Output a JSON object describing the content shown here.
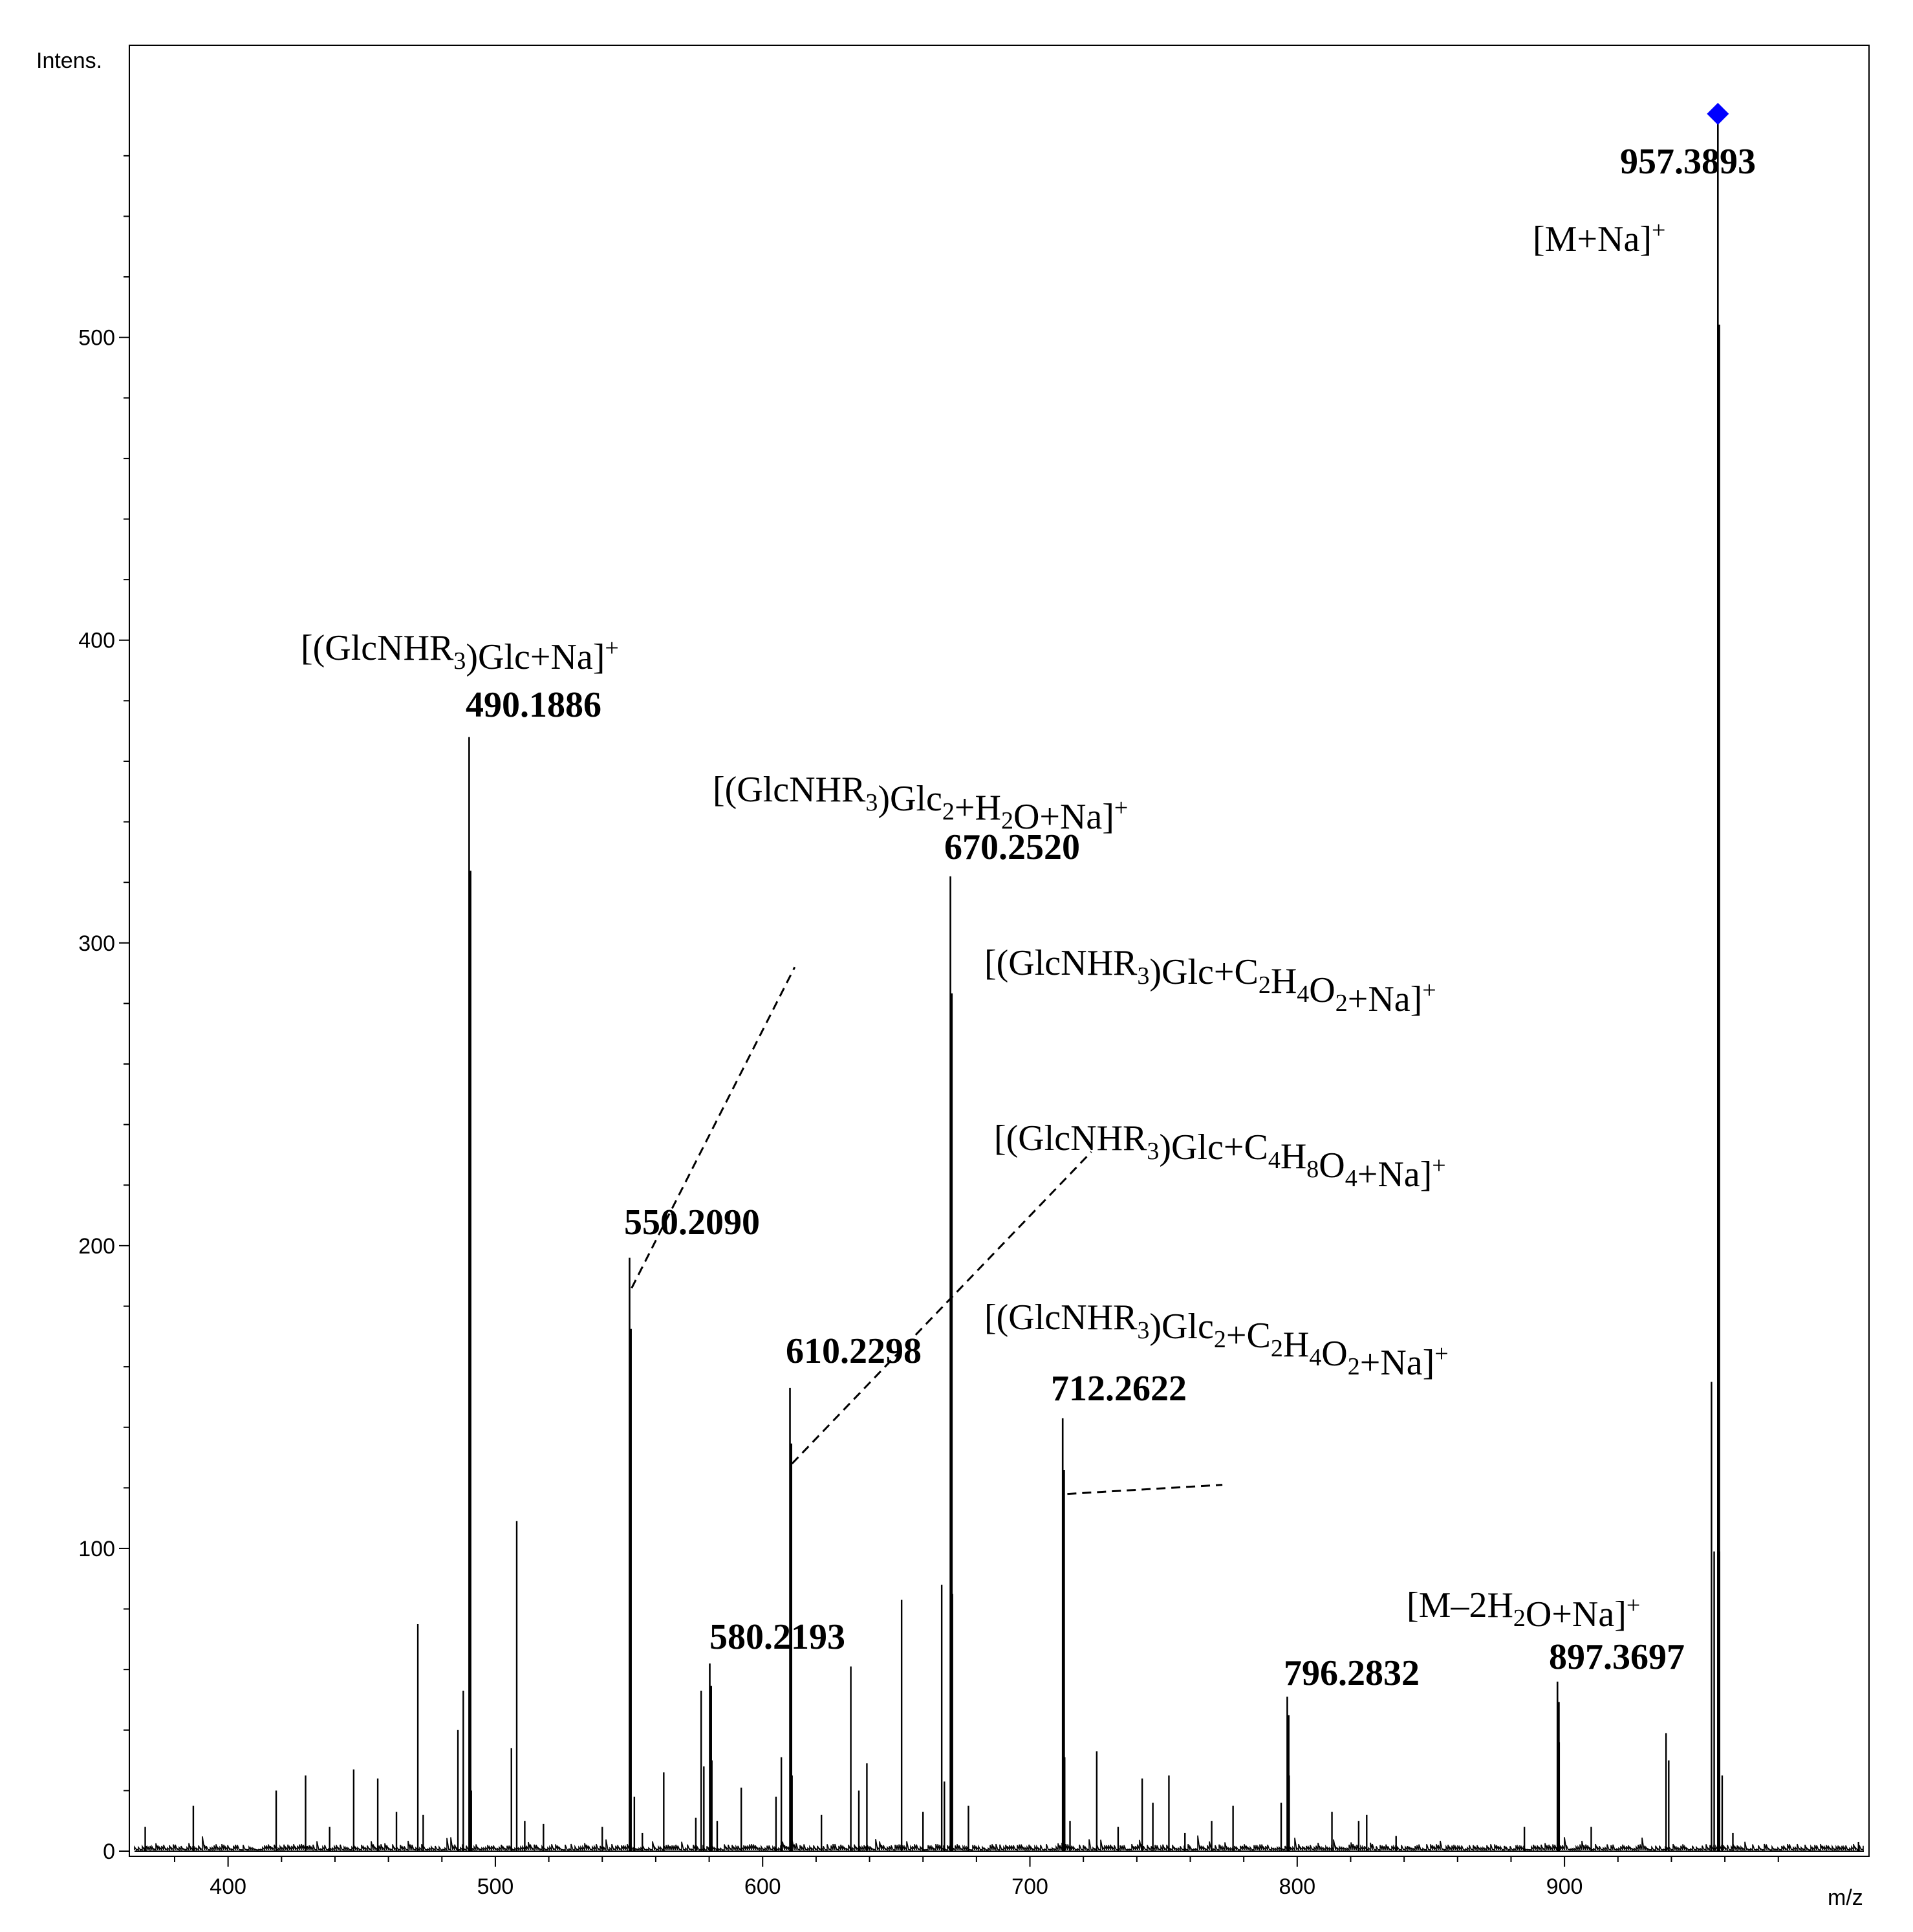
{
  "chart_data": {
    "type": "line",
    "title": "",
    "xlabel": "m/z",
    "ylabel": "Intens.",
    "xlim": [
      365,
      1012
    ],
    "ylim": [
      0,
      575
    ],
    "x_ticks": [
      400,
      500,
      600,
      700,
      800,
      900
    ],
    "y_ticks": [
      0,
      100,
      200,
      300,
      400,
      500
    ],
    "grid": false,
    "legend": "none",
    "colors": {
      "spectrum": "#000000",
      "marker": "#0000ff",
      "dash": "#000000"
    },
    "labeled_peaks": [
      {
        "mz": 490.1886,
        "intensity": 368,
        "label": "490.1886",
        "annotation": "[(GlcNHR3)Glc+Na]+"
      },
      {
        "mz": 550.209,
        "intensity": 196,
        "label": "550.2090",
        "annotation": "[(GlcNHR3)Glc+C2H4O2+Na]+"
      },
      {
        "mz": 580.2193,
        "intensity": 62,
        "label": "580.2193",
        "annotation": ""
      },
      {
        "mz": 610.2298,
        "intensity": 153,
        "label": "610.2298",
        "annotation": "[(GlcNHR3)Glc+C4H8O4+Na]+"
      },
      {
        "mz": 670.252,
        "intensity": 322,
        "label": "670.2520",
        "annotation": "[(GlcNHR3)Glc2+H2O+Na]+"
      },
      {
        "mz": 712.2622,
        "intensity": 143,
        "label": "712.2622",
        "annotation": "[(GlcNHR3)Glc2+C2H4O2+Na]+"
      },
      {
        "mz": 796.2832,
        "intensity": 51,
        "label": "796.2832",
        "annotation": ""
      },
      {
        "mz": 897.3697,
        "intensity": 56,
        "label": "897.3697",
        "annotation": "[M–2H2O+Na]+"
      },
      {
        "mz": 957.3893,
        "intensity": 573,
        "label": "957.3893",
        "annotation": "[M+Na]+"
      }
    ],
    "other_peaks": [
      [
        369,
        8
      ],
      [
        387,
        15
      ],
      [
        418,
        20
      ],
      [
        429,
        25
      ],
      [
        438,
        8
      ],
      [
        447,
        27
      ],
      [
        456,
        24
      ],
      [
        463,
        13
      ],
      [
        471,
        75
      ],
      [
        473,
        12
      ],
      [
        486,
        40
      ],
      [
        488,
        53
      ],
      [
        491,
        20
      ],
      [
        506,
        34
      ],
      [
        508,
        109
      ],
      [
        511,
        10
      ],
      [
        518,
        9
      ],
      [
        540,
        8
      ],
      [
        552,
        18
      ],
      [
        555,
        6
      ],
      [
        563,
        26
      ],
      [
        575,
        11
      ],
      [
        577,
        53
      ],
      [
        578,
        28
      ],
      [
        581,
        30
      ],
      [
        583,
        10
      ],
      [
        592,
        21
      ],
      [
        605,
        18
      ],
      [
        607,
        31
      ],
      [
        611,
        25
      ],
      [
        622,
        12
      ],
      [
        633,
        61
      ],
      [
        636,
        20
      ],
      [
        639,
        29
      ],
      [
        652,
        83
      ],
      [
        660,
        13
      ],
      [
        667,
        88
      ],
      [
        668,
        23
      ],
      [
        671,
        85
      ],
      [
        677,
        15
      ],
      [
        713,
        31
      ],
      [
        715,
        10
      ],
      [
        725,
        33
      ],
      [
        733,
        8
      ],
      [
        742,
        24
      ],
      [
        746,
        16
      ],
      [
        752,
        25
      ],
      [
        758,
        6
      ],
      [
        768,
        10
      ],
      [
        776,
        15
      ],
      [
        794,
        16
      ],
      [
        797,
        25
      ],
      [
        813,
        13
      ],
      [
        823,
        10
      ],
      [
        826,
        12
      ],
      [
        837,
        5
      ],
      [
        885,
        8
      ],
      [
        898,
        36
      ],
      [
        910,
        8
      ],
      [
        938,
        39
      ],
      [
        939,
        30
      ],
      [
        955,
        155
      ],
      [
        956,
        99
      ],
      [
        958,
        99
      ],
      [
        959,
        25
      ],
      [
        963,
        6
      ],
      [
        1010,
        3
      ]
    ],
    "annotation_lines": [
      {
        "from": [
          551,
          186
        ],
        "to": [
          612,
          292
        ]
      },
      {
        "from": [
          611,
          128
        ],
        "to": [
          723,
          231
        ]
      },
      {
        "from": [
          714,
          118
        ],
        "to": [
          772,
          121
        ]
      }
    ]
  }
}
